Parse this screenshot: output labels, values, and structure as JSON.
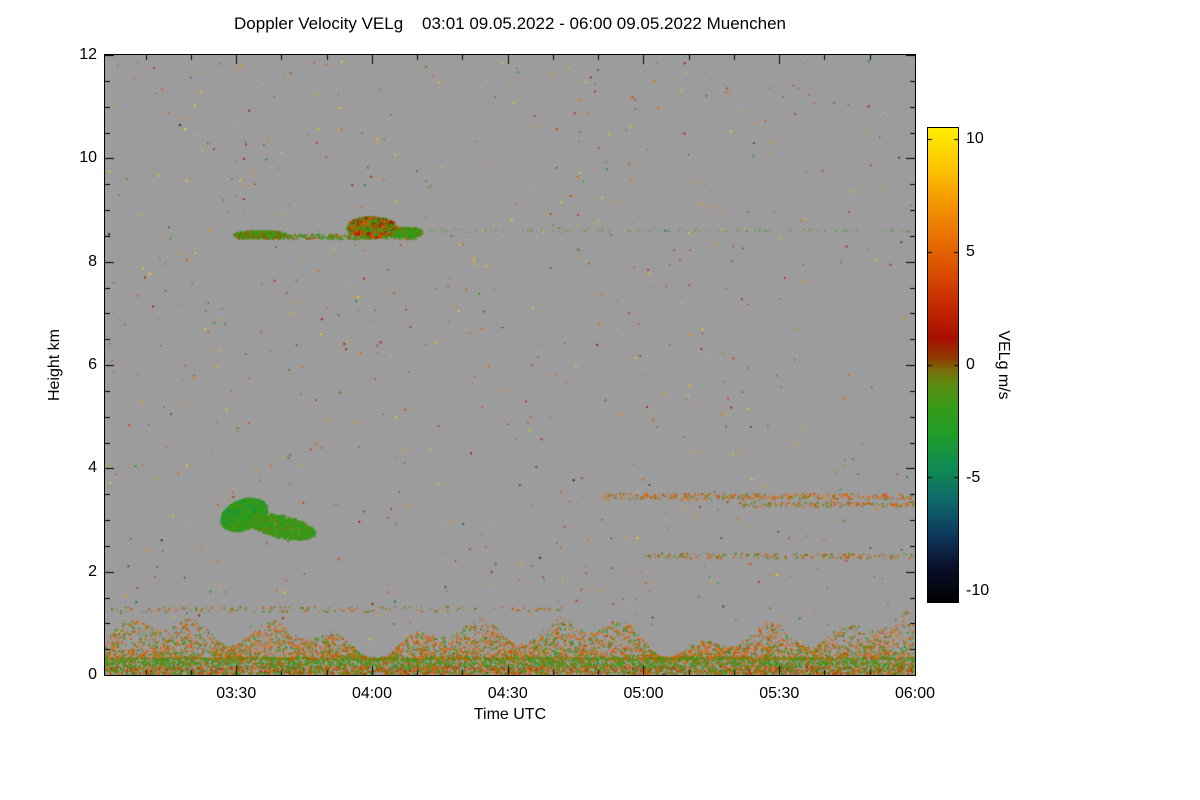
{
  "figure": {
    "background": "#ffffff",
    "plot_background": "#9c9c9c",
    "frame_color": "#000000"
  },
  "chart_data": {
    "type": "heatmap",
    "title": "Doppler Velocity VELg    03:01 09.05.2022 - 06:00 09.05.2022 Muenchen",
    "xlabel": "Time UTC",
    "ylabel": "Height km",
    "x_range": [
      3.0167,
      6.0
    ],
    "y_range": [
      0,
      12
    ],
    "grid": false,
    "background_color": "#9c9c9c",
    "x_ticks": [
      {
        "value": 3.5,
        "label": "03:30"
      },
      {
        "value": 4.0,
        "label": "04:00"
      },
      {
        "value": 4.5,
        "label": "04:30"
      },
      {
        "value": 5.0,
        "label": "05:00"
      },
      {
        "value": 5.5,
        "label": "05:30"
      },
      {
        "value": 6.0,
        "label": "06:00"
      }
    ],
    "y_ticks": [
      {
        "value": 0,
        "label": "0"
      },
      {
        "value": 2,
        "label": "2"
      },
      {
        "value": 4,
        "label": "4"
      },
      {
        "value": 6,
        "label": "6"
      },
      {
        "value": 8,
        "label": "8"
      },
      {
        "value": 10,
        "label": "10"
      },
      {
        "value": 12,
        "label": "12"
      }
    ],
    "colorbar": {
      "label": "VELg m/s",
      "range": [
        -10.5,
        10.5
      ],
      "position": "right",
      "ticks": [
        {
          "value": 10,
          "label": "10"
        },
        {
          "value": 5,
          "label": "5"
        },
        {
          "value": 0,
          "label": "0"
        },
        {
          "value": -5,
          "label": "-5"
        },
        {
          "value": -10,
          "label": "-10"
        }
      ]
    },
    "colormap": [
      [
        -10.5,
        "#020202"
      ],
      [
        -9.0,
        "#0a0f2a"
      ],
      [
        -7.5,
        "#0c3a5e"
      ],
      [
        -6.0,
        "#0e6a6a"
      ],
      [
        -4.5,
        "#0f8c52"
      ],
      [
        -3.0,
        "#1f9e28"
      ],
      [
        -1.8,
        "#3a9a16"
      ],
      [
        -0.8,
        "#5f8a10"
      ],
      [
        -0.2,
        "#7a6a08"
      ],
      [
        0.3,
        "#8f3a00"
      ],
      [
        1.2,
        "#a81000"
      ],
      [
        2.5,
        "#c32600"
      ],
      [
        4.0,
        "#d84a00"
      ],
      [
        5.5,
        "#e86e00"
      ],
      [
        7.0,
        "#f39100"
      ],
      [
        8.5,
        "#fbbd00"
      ],
      [
        10.5,
        "#ffef00"
      ]
    ],
    "features": [
      {
        "kind": "speckles",
        "t": [
          3.03,
          5.99
        ],
        "y": [
          0.1,
          11.9
        ],
        "count": 820,
        "vmin": -10,
        "vmax": 10,
        "bias": 0.5,
        "size": [
          1,
          2
        ],
        "seed": 7
      },
      {
        "kind": "layer",
        "t": [
          3.0167,
          6.0
        ],
        "y_base": 0.3,
        "y_top": 1.35,
        "count": 5200,
        "palette": [
          [
            5.2,
            0.4
          ],
          [
            4.0,
            0.2
          ],
          [
            -0.6,
            0.2
          ],
          [
            -2.2,
            0.2
          ]
        ],
        "size": [
          1,
          2
        ],
        "seed": 11
      },
      {
        "kind": "band",
        "t": [
          3.0167,
          6.0
        ],
        "y": [
          0.16,
          0.34
        ],
        "count": 3200,
        "palette": [
          [
            -2.2,
            0.5
          ],
          [
            -0.8,
            0.3
          ],
          [
            4.5,
            0.2
          ]
        ],
        "size": [
          1,
          2
        ],
        "seed": 12
      },
      {
        "kind": "band",
        "t": [
          3.0167,
          6.0
        ],
        "y": [
          0.01,
          0.16
        ],
        "count": 3000,
        "palette": [
          [
            4.6,
            0.35
          ],
          [
            -0.8,
            0.3
          ],
          [
            -2.2,
            0.2
          ],
          [
            2.5,
            0.15
          ]
        ],
        "size": [
          1,
          2
        ],
        "seed": 13
      },
      {
        "kind": "dotline",
        "t": [
          3.5,
          4.17
        ],
        "y": 8.48,
        "jitter": 0.05,
        "count": 420,
        "palette": [
          [
            -0.8,
            0.45
          ],
          [
            -2.2,
            0.35
          ],
          [
            3.5,
            0.2
          ]
        ],
        "size": [
          1,
          2
        ],
        "seed": 20
      },
      {
        "kind": "blob",
        "cx": 3.59,
        "cy": 8.52,
        "rx": 0.1,
        "ry": 0.08,
        "tilt": 0,
        "count": 650,
        "palette": [
          [
            -0.8,
            0.5
          ],
          [
            -2.2,
            0.35
          ],
          [
            3.0,
            0.15
          ]
        ],
        "size": [
          1,
          2
        ],
        "seed": 21
      },
      {
        "kind": "blob",
        "cx": 4.0,
        "cy": 8.66,
        "rx": 0.09,
        "ry": 0.2,
        "tilt": 0,
        "count": 1300,
        "palette": [
          [
            -0.8,
            0.3
          ],
          [
            -2.2,
            0.25
          ],
          [
            4.2,
            0.25
          ],
          [
            1.5,
            0.2
          ]
        ],
        "size": [
          1,
          3
        ],
        "seed": 22
      },
      {
        "kind": "blob",
        "cx": 4.13,
        "cy": 8.56,
        "rx": 0.055,
        "ry": 0.1,
        "tilt": 0,
        "count": 400,
        "palette": [
          [
            -2.2,
            0.55
          ],
          [
            -0.8,
            0.45
          ]
        ],
        "size": [
          1,
          3
        ],
        "seed": 23
      },
      {
        "kind": "blob",
        "cx": 3.53,
        "cy": 3.1,
        "rx": 0.085,
        "ry": 0.3,
        "tilt": 0.1,
        "count": 1700,
        "palette": [
          [
            -2.4,
            0.45
          ],
          [
            -1.4,
            0.3
          ],
          [
            -3.6,
            0.25
          ]
        ],
        "size": [
          1,
          3
        ],
        "seed": 31
      },
      {
        "kind": "blob",
        "cx": 3.67,
        "cy": 2.86,
        "rx": 0.12,
        "ry": 0.22,
        "tilt": -0.12,
        "count": 1000,
        "palette": [
          [
            -2.4,
            0.5
          ],
          [
            -1.4,
            0.35
          ],
          [
            -0.8,
            0.15
          ]
        ],
        "size": [
          1,
          3
        ],
        "seed": 32
      },
      {
        "kind": "dotline",
        "t": [
          4.85,
          6.0
        ],
        "y": 3.45,
        "jitter": 0.06,
        "count": 330,
        "palette": [
          [
            4.6,
            0.55
          ],
          [
            5.5,
            0.2
          ],
          [
            -0.8,
            0.25
          ]
        ],
        "size": [
          1,
          2
        ],
        "seed": 41
      },
      {
        "kind": "dotline",
        "t": [
          5.35,
          6.0
        ],
        "y": 3.3,
        "jitter": 0.05,
        "count": 150,
        "palette": [
          [
            4.6,
            0.6
          ],
          [
            -0.8,
            0.4
          ]
        ],
        "size": [
          1,
          2
        ],
        "seed": 42
      },
      {
        "kind": "dotline",
        "t": [
          5.0,
          6.0
        ],
        "y": 2.3,
        "jitter": 0.05,
        "count": 170,
        "palette": [
          [
            -0.8,
            0.5
          ],
          [
            4.6,
            0.5
          ]
        ],
        "size": [
          1,
          2
        ],
        "seed": 43
      },
      {
        "kind": "dotline",
        "t": [
          4.2,
          6.0
        ],
        "y": 8.6,
        "jitter": 0.03,
        "count": 120,
        "palette": [
          [
            -2.2,
            0.7
          ],
          [
            -0.8,
            0.3
          ]
        ],
        "size": [
          1,
          1
        ],
        "seed": 44
      },
      {
        "kind": "dotline",
        "t": [
          3.03,
          4.7
        ],
        "y": 1.27,
        "jitter": 0.05,
        "count": 140,
        "palette": [
          [
            4.6,
            0.5
          ],
          [
            -0.8,
            0.5
          ]
        ],
        "size": [
          1,
          2
        ],
        "seed": 45
      }
    ]
  }
}
